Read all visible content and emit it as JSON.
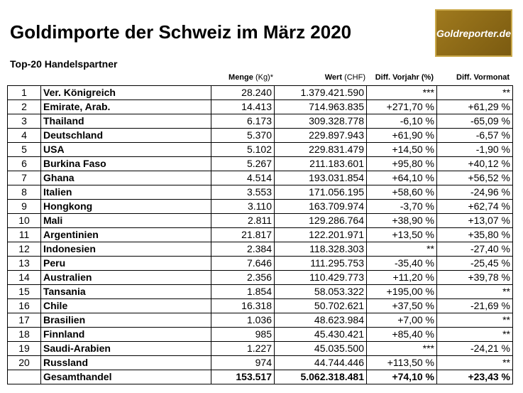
{
  "header": {
    "title": "Goldimporte der Schweiz im März 2020",
    "logo": "Goldreporter.de",
    "subtitle": "Top-20 Handelspartner"
  },
  "table": {
    "columns": [
      {
        "label": "Menge",
        "unit": "(Kg)*"
      },
      {
        "label": "Wert",
        "unit": "(CHF)"
      },
      {
        "label": "Diff. Vorjahr (%)"
      },
      {
        "label": "Diff. Vormonat"
      }
    ],
    "rows": [
      [
        "1",
        "Ver. Königreich",
        "28.240",
        "1.379.421.590",
        "***",
        "**"
      ],
      [
        "2",
        "Emirate, Arab.",
        "14.413",
        "714.963.835",
        "+271,70 %",
        "+61,29 %"
      ],
      [
        "3",
        "Thailand",
        "6.173",
        "309.328.778",
        "-6,10 %",
        "-65,09 %"
      ],
      [
        "4",
        "Deutschland",
        "5.370",
        "229.897.943",
        "+61,90 %",
        "-6,57 %"
      ],
      [
        "5",
        "USA",
        "5.102",
        "229.831.479",
        "+14,50 %",
        "-1,90 %"
      ],
      [
        "6",
        "Burkina Faso",
        "5.267",
        "211.183.601",
        "+95,80 %",
        "+40,12 %"
      ],
      [
        "7",
        "Ghana",
        "4.514",
        "193.031.854",
        "+64,10 %",
        "+56,52 %"
      ],
      [
        "8",
        "Italien",
        "3.553",
        "171.056.195",
        "+58,60 %",
        "-24,96 %"
      ],
      [
        "9",
        "Hongkong",
        "3.110",
        "163.709.974",
        "-3,70 %",
        "+62,74 %"
      ],
      [
        "10",
        "Mali",
        "2.811",
        "129.286.764",
        "+38,90 %",
        "+13,07 %"
      ],
      [
        "11",
        "Argentinien",
        "21.817",
        "122.201.971",
        "+13,50 %",
        "+35,80 %"
      ],
      [
        "12",
        "Indonesien",
        "2.384",
        "118.328.303",
        "**",
        "-27,40 %"
      ],
      [
        "13",
        "Peru",
        "7.646",
        "111.295.753",
        "-35,40 %",
        "-25,45 %"
      ],
      [
        "14",
        "Australien",
        "2.356",
        "110.429.773",
        "+11,20 %",
        "+39,78 %"
      ],
      [
        "15",
        "Tansania",
        "1.854",
        "58.053.322",
        "+195,00 %",
        "**"
      ],
      [
        "16",
        "Chile",
        "16.318",
        "50.702.621",
        "+37,50 %",
        "-21,69 %"
      ],
      [
        "17",
        "Brasilien",
        "1.036",
        "48.623.984",
        "+7,00 %",
        "**"
      ],
      [
        "18",
        "Finnland",
        "985",
        "45.430.421",
        "+85,40 %",
        "**"
      ],
      [
        "19",
        "Saudi-Arabien",
        "1.227",
        "45.035.500",
        "***",
        "-24,21 %"
      ],
      [
        "20",
        "Russland",
        "974",
        "44.744.446",
        "+113,50 %",
        "**"
      ]
    ],
    "total": [
      "Gesamthandel",
      "153.517",
      "5.062.318.481",
      "+74,10 %",
      "+23,43 %"
    ]
  }
}
